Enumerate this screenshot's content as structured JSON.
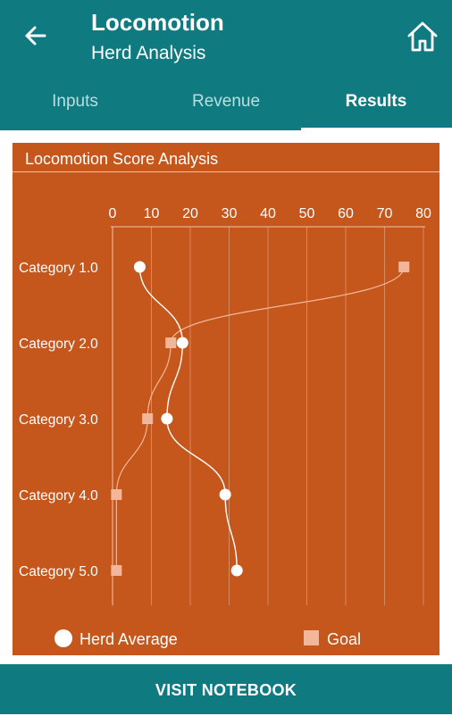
{
  "appbar": {
    "title": "Locomotion",
    "subtitle": "Herd Analysis",
    "back_icon": "arrow-back-icon",
    "home_icon": "home-icon"
  },
  "tabs": [
    {
      "label": "Inputs"
    },
    {
      "label": "Revenue"
    },
    {
      "label": "Results"
    }
  ],
  "active_tab": "Results",
  "card": {
    "title": "Locomotion Score Analysis"
  },
  "colors": {
    "primary": "#0f7a80",
    "chart_bg": "#c5561c",
    "point": "#ffffff",
    "goal": "#f2b79a"
  },
  "chart_data": {
    "type": "line",
    "orientation": "horizontal",
    "categories": [
      "Category 1.0",
      "Category 2.0",
      "Category 3.0",
      "Category 4.0",
      "Category 5.0"
    ],
    "xlim": [
      0,
      80
    ],
    "xticks": [
      0,
      10,
      20,
      30,
      40,
      50,
      60,
      70,
      80
    ],
    "grid": true,
    "legend_position": "bottom",
    "series": [
      {
        "name": "Herd Average",
        "marker": "circle",
        "values": [
          7,
          18,
          14,
          29,
          32
        ]
      },
      {
        "name": "Goal",
        "marker": "square",
        "values": [
          75,
          15,
          9,
          1,
          1
        ]
      }
    ]
  },
  "bottom": {
    "button_label": "VISIT NOTEBOOK"
  }
}
